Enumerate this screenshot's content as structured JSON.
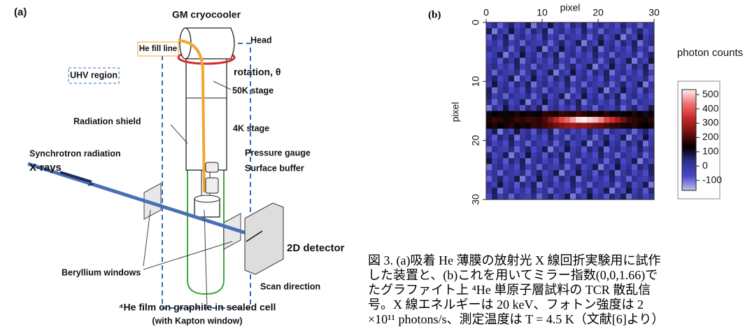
{
  "diagram": {
    "panel_label": "(a)",
    "labels": {
      "cryocooler": "GM cryocooler",
      "head": "Head",
      "fill_line": "He fill line",
      "uhv": "UHV region",
      "rotation": "rotation, θ",
      "stage50": "50K stage",
      "shield": "Radiation shield",
      "stage4": "4K stage",
      "gauge": "Pressure gauge",
      "buffer": "Surface buffer",
      "synchrotron": "Synchrotron radiation",
      "xrays": "X-rays",
      "detector": "2D detector",
      "windows": "Beryllium windows",
      "scan": "Scan direction",
      "film": "⁴He film on graphite in sealed cell",
      "kapton": "(with Kapton window)"
    }
  },
  "chart_data": {
    "type": "heatmap",
    "panel_label": "(b)",
    "x_label": "pixel",
    "y_label": "pixel",
    "xlim": [
      0,
      30
    ],
    "ylim": [
      0,
      30
    ],
    "xticks": [
      0,
      10,
      20,
      30
    ],
    "yticks": [
      0,
      10,
      20,
      30
    ],
    "values": [
      [
        -30,
        40,
        -90,
        10,
        60,
        -60,
        0,
        80,
        -110,
        20,
        -40,
        90,
        -20,
        30,
        -80,
        50,
        -10,
        70,
        -100,
        0,
        40,
        -50,
        10,
        -70,
        60,
        -30,
        20,
        -90,
        30,
        -10
      ],
      [
        80,
        -110,
        20,
        -40,
        90,
        -20,
        30,
        -80,
        50,
        -10,
        70,
        -100,
        0,
        40,
        -50,
        10,
        -70,
        60,
        -30,
        20,
        -90,
        30,
        -10,
        -30,
        40,
        -90,
        10,
        60,
        -60,
        0
      ],
      [
        -80,
        50,
        -10,
        70,
        -100,
        0,
        40,
        -50,
        10,
        -70,
        60,
        -30,
        20,
        -90,
        30,
        -10,
        -30,
        40,
        -90,
        10,
        60,
        -60,
        0,
        80,
        -110,
        20,
        -40,
        90,
        -20,
        30
      ],
      [
        -50,
        10,
        -70,
        60,
        -30,
        20,
        -90,
        30,
        -10,
        -30,
        40,
        -90,
        10,
        60,
        -60,
        0,
        80,
        -110,
        20,
        -40,
        90,
        -20,
        30,
        -80,
        50,
        -10,
        70,
        -100,
        0,
        40
      ],
      [
        30,
        -10,
        -30,
        40,
        -90,
        10,
        60,
        -60,
        0,
        80,
        -110,
        20,
        -40,
        90,
        -20,
        30,
        -80,
        50,
        -10,
        70,
        -100,
        0,
        40,
        -50,
        10,
        -70,
        60,
        -30,
        20,
        -90
      ],
      [
        -60,
        0,
        80,
        -110,
        20,
        -40,
        90,
        -20,
        30,
        -80,
        50,
        -10,
        70,
        -100,
        0,
        40,
        -50,
        10,
        -70,
        60,
        -30,
        20,
        -90,
        30,
        -10,
        -30,
        40,
        -90,
        10,
        60
      ],
      [
        -20,
        30,
        -80,
        50,
        -10,
        70,
        -100,
        0,
        40,
        -50,
        10,
        -70,
        60,
        -30,
        20,
        -90,
        30,
        -10,
        -30,
        40,
        -90,
        10,
        60,
        -60,
        0,
        80,
        -110,
        20,
        -40,
        90
      ],
      [
        0,
        40,
        -50,
        10,
        -70,
        60,
        -30,
        20,
        -90,
        30,
        -10,
        -30,
        40,
        -90,
        10,
        60,
        -60,
        0,
        80,
        -110,
        20,
        -40,
        90,
        -20,
        30,
        -80,
        50,
        -10,
        70,
        -100
      ],
      [
        20,
        -90,
        30,
        -10,
        -30,
        40,
        -90,
        10,
        60,
        -60,
        0,
        80,
        -110,
        20,
        -40,
        90,
        -20,
        30,
        -80,
        50,
        -10,
        70,
        -100,
        0,
        40,
        -50,
        10,
        -70,
        60,
        -30
      ],
      [
        10,
        60,
        -60,
        0,
        80,
        -110,
        20,
        -40,
        90,
        -20,
        30,
        -80,
        50,
        -10,
        70,
        -100,
        0,
        40,
        -50,
        10,
        -70,
        60,
        -30,
        20,
        -90,
        30,
        -10,
        -30,
        40,
        -90
      ],
      [
        -40,
        90,
        -20,
        30,
        -80,
        50,
        -10,
        70,
        -100,
        0,
        40,
        -50,
        10,
        -70,
        60,
        -30,
        20,
        -90,
        30,
        -10,
        -30,
        40,
        -90,
        10,
        60,
        -60,
        0,
        80,
        -110,
        20
      ],
      [
        70,
        -100,
        0,
        40,
        -50,
        10,
        -70,
        60,
        -30,
        20,
        -90,
        30,
        -10,
        -30,
        40,
        -90,
        10,
        60,
        -60,
        0,
        80,
        -110,
        20,
        -40,
        90,
        -20,
        30,
        -80,
        50,
        -10
      ],
      [
        60,
        -30,
        20,
        -90,
        30,
        -10,
        -30,
        40,
        -90,
        10,
        60,
        -60,
        0,
        80,
        -110,
        20,
        -40,
        90,
        -20,
        30,
        -80,
        50,
        -10,
        70,
        -100,
        0,
        40,
        -50,
        10,
        -70
      ],
      [
        40,
        -90,
        10,
        60,
        -60,
        0,
        80,
        -110,
        20,
        -40,
        90,
        -20,
        30,
        -80,
        50,
        -10,
        70,
        -100,
        0,
        40,
        -50,
        10,
        -70,
        60,
        -30,
        20,
        -90,
        30,
        -10,
        -30
      ],
      [
        -110,
        20,
        -40,
        90,
        -20,
        30,
        -80,
        50,
        -10,
        70,
        -100,
        0,
        40,
        -50,
        10,
        -70,
        60,
        -30,
        20,
        -90,
        30,
        -10,
        -30,
        40,
        -90,
        10,
        60,
        -60,
        0,
        80
      ],
      [
        110,
        130,
        150,
        120,
        140,
        160,
        130,
        150,
        120,
        140,
        170,
        160,
        150,
        180,
        170,
        160,
        190,
        170,
        150,
        160,
        140,
        170,
        130,
        150,
        120,
        140,
        160,
        130,
        110,
        140
      ],
      [
        160,
        180,
        170,
        150,
        160,
        180,
        170,
        190,
        180,
        170,
        200,
        260,
        320,
        380,
        420,
        470,
        520,
        540,
        510,
        490,
        450,
        380,
        340,
        290,
        230,
        190,
        170,
        160,
        150,
        170
      ],
      [
        140,
        160,
        130,
        150,
        170,
        140,
        160,
        150,
        180,
        170,
        190,
        210,
        230,
        250,
        270,
        280,
        260,
        270,
        250,
        230,
        220,
        200,
        180,
        170,
        160,
        150,
        170,
        140,
        130,
        150
      ],
      [
        0,
        80,
        -110,
        20,
        -40,
        90,
        -20,
        30,
        -80,
        50,
        -10,
        70,
        -100,
        0,
        40,
        -50,
        10,
        -70,
        60,
        -30,
        20,
        -90,
        30,
        -10,
        -30,
        40,
        -90,
        10,
        60,
        -60
      ],
      [
        30,
        -80,
        50,
        -10,
        70,
        -100,
        0,
        40,
        -50,
        10,
        -70,
        60,
        -30,
        20,
        -90,
        30,
        -10,
        -30,
        40,
        -90,
        10,
        60,
        -60,
        0,
        80,
        -110,
        20,
        -40,
        90,
        -20
      ],
      [
        40,
        -50,
        10,
        -70,
        60,
        -30,
        20,
        -90,
        30,
        -10,
        -30,
        40,
        -90,
        10,
        60,
        -60,
        0,
        80,
        -110,
        20,
        -40,
        90,
        -20,
        30,
        -80,
        50,
        -10,
        70,
        -100,
        0
      ],
      [
        -90,
        30,
        -10,
        -30,
        40,
        -90,
        10,
        60,
        -60,
        0,
        80,
        -110,
        20,
        -40,
        90,
        -20,
        30,
        -80,
        50,
        -10,
        70,
        -100,
        0,
        40,
        -50,
        10,
        -70,
        60,
        -30,
        20
      ],
      [
        60,
        -60,
        0,
        80,
        -110,
        20,
        -40,
        90,
        -20,
        30,
        -80,
        50,
        -10,
        70,
        -100,
        0,
        40,
        -50,
        10,
        -70,
        60,
        -30,
        20,
        -90,
        30,
        -10,
        -30,
        40,
        -90,
        10
      ],
      [
        90,
        -20,
        30,
        -80,
        50,
        -10,
        70,
        -100,
        0,
        40,
        -50,
        10,
        -70,
        60,
        -30,
        20,
        -90,
        30,
        -10,
        -30,
        40,
        -90,
        10,
        60,
        -60,
        0,
        80,
        -110,
        20,
        -40
      ],
      [
        -100,
        0,
        40,
        -50,
        10,
        -70,
        60,
        -30,
        20,
        -90,
        30,
        -10,
        -30,
        40,
        -90,
        10,
        60,
        -60,
        0,
        80,
        -110,
        20,
        -40,
        90,
        -20,
        30,
        -80,
        50,
        -10,
        70
      ],
      [
        -30,
        20,
        -90,
        30,
        -10,
        -30,
        40,
        -90,
        10,
        60,
        -60,
        0,
        80,
        -110,
        20,
        -40,
        90,
        -20,
        30,
        -80,
        50,
        -10,
        70,
        -100,
        0,
        40,
        -50,
        10,
        -70,
        60
      ],
      [
        -90,
        10,
        60,
        -60,
        0,
        80,
        -110,
        20,
        -40,
        90,
        -20,
        30,
        -80,
        50,
        -10,
        70,
        -100,
        0,
        40,
        -50,
        10,
        -70,
        60,
        -30,
        20,
        -90,
        30,
        -10,
        -30,
        40
      ],
      [
        20,
        -40,
        90,
        -20,
        30,
        -80,
        50,
        -10,
        70,
        -100,
        0,
        40,
        -50,
        10,
        -70,
        60,
        -30,
        20,
        -90,
        30,
        -10,
        -30,
        40,
        -90,
        10,
        60,
        -60,
        0,
        80,
        -110
      ],
      [
        -10,
        70,
        -100,
        0,
        40,
        -50,
        10,
        -70,
        60,
        -30,
        20,
        -90,
        30,
        -10,
        -30,
        40,
        -90,
        10,
        60,
        -60,
        0,
        80,
        -110,
        20,
        -40,
        90,
        -20,
        30,
        -80,
        50
      ],
      [
        -70,
        60,
        -30,
        20,
        -90,
        30,
        -10,
        -30,
        40,
        -90,
        10,
        60,
        -60,
        0,
        80,
        -110,
        20,
        -40,
        90,
        -20,
        30,
        -80,
        50,
        -10,
        70,
        -100,
        0,
        40,
        -50,
        10
      ]
    ],
    "colorbar": {
      "label": "photon counts",
      "lim": [
        -170,
        535
      ],
      "ticks": [
        500,
        400,
        300,
        200,
        100,
        0,
        -100
      ],
      "colors": [
        "#c0c0f0",
        "#4848c8",
        "#303090",
        "#000000",
        "#701010",
        "#c82828",
        "#f07070",
        "#fff0f0"
      ]
    }
  },
  "caption": [
    "図 3. (a)吸着 He 薄膜の放射光 X 線回折実験用に試作",
    "した装置と、(b)これを用いてミラー指数(0,0,1.66)で",
    "たグラファイト上 ⁴He 単原子層試料の TCR 散乱信",
    "号。X 線エネルギーは 20 keV、フォトン強度は 2",
    "×10¹¹ photons/s、測定温度は T = 4.5 K（文献[6]より）"
  ]
}
